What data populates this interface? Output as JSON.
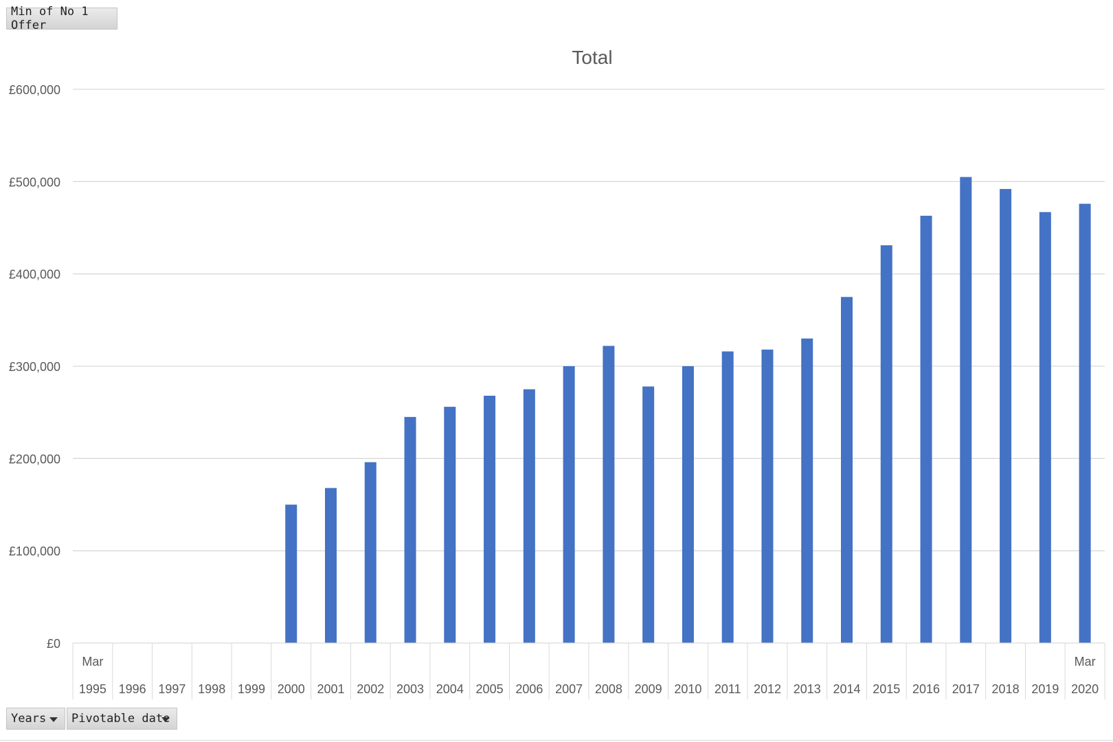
{
  "pivot": {
    "value_field": "Min of No 1 Offer",
    "row_fields": [
      "Years",
      "Pivotable date"
    ]
  },
  "chart_data": {
    "type": "bar",
    "title": "Total",
    "xlabel": "",
    "ylabel": "",
    "categories": [
      "1995",
      "1996",
      "1997",
      "1998",
      "1999",
      "2000",
      "2001",
      "2002",
      "2003",
      "2004",
      "2005",
      "2006",
      "2007",
      "2008",
      "2009",
      "2010",
      "2011",
      "2012",
      "2013",
      "2014",
      "2015",
      "2016",
      "2017",
      "2018",
      "2019",
      "2020"
    ],
    "sub_labels": [
      "Mar",
      "",
      "",
      "",
      "",
      "",
      "",
      "",
      "",
      "",
      "",
      "",
      "",
      "",
      "",
      "",
      "",
      "",
      "",
      "",
      "",
      "",
      "",
      "",
      "",
      "Mar"
    ],
    "values": [
      null,
      null,
      null,
      null,
      null,
      150000,
      168000,
      196000,
      245000,
      256000,
      268000,
      275000,
      300000,
      322000,
      278000,
      300000,
      316000,
      318000,
      330000,
      375000,
      431000,
      463000,
      505000,
      492000,
      467000,
      476000
    ],
    "ylim": [
      0,
      600000
    ],
    "yticks": [
      0,
      100000,
      200000,
      300000,
      400000,
      500000,
      600000
    ],
    "ytick_labels": [
      "£0",
      "£100,000",
      "£200,000",
      "£300,000",
      "£400,000",
      "£500,000",
      "£600,000"
    ],
    "grid": true,
    "legend": "none",
    "bar_color": "#4472c4",
    "grid_color": "#d9d9d9"
  }
}
